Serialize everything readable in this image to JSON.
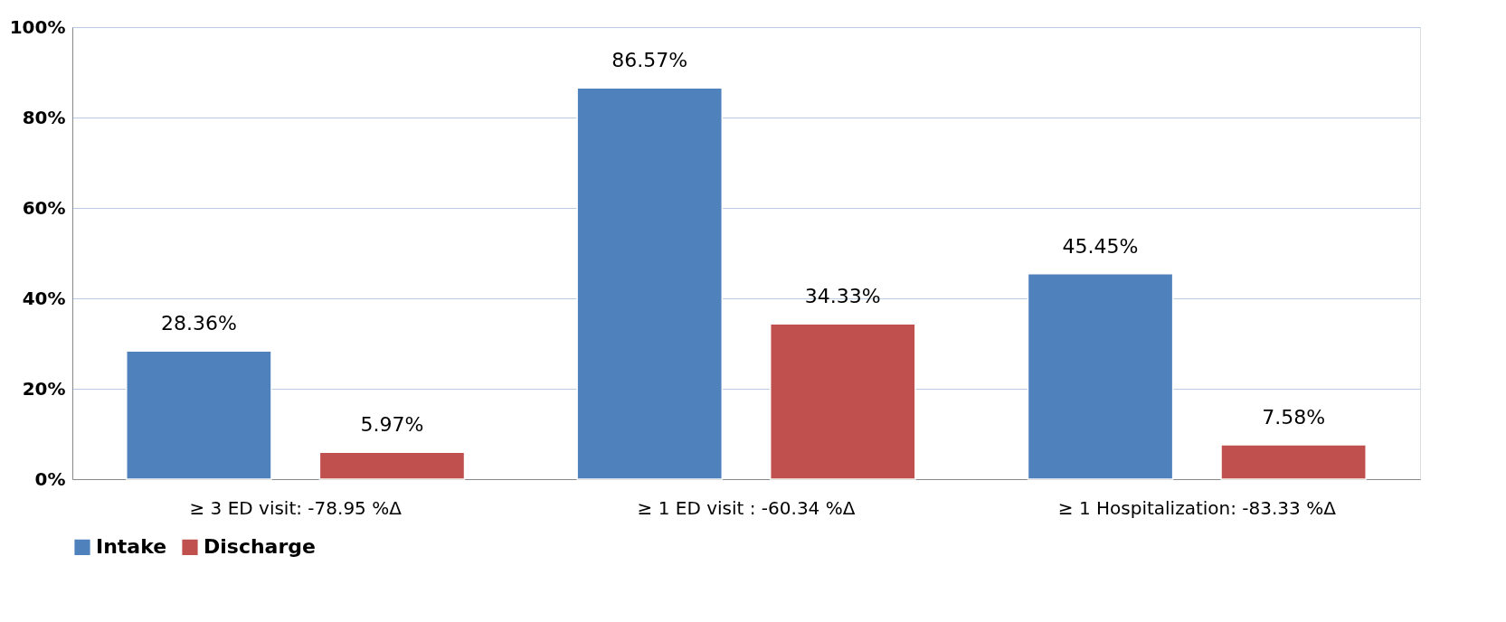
{
  "chart_data": {
    "type": "bar",
    "categories": [
      "≥ 3 ED visit:  -78.95 %Δ",
      "≥ 1 ED visit :  -60.34 %Δ",
      "≥ 1 Hospitalization:  -83.33 %Δ"
    ],
    "series": [
      {
        "name": "Intake",
        "color": "#4f81bd",
        "values": [
          28.36,
          86.57,
          45.45
        ],
        "value_labels": [
          "28.36%",
          "86.57%",
          "45.45%"
        ]
      },
      {
        "name": "Discharge",
        "color": "#c0504d",
        "values": [
          5.97,
          34.33,
          7.58
        ],
        "value_labels": [
          "5.97%",
          "34.33%",
          "7.58%"
        ]
      }
    ],
    "ylim": [
      0,
      100
    ],
    "yticks": [
      {
        "value": 0,
        "label": "0%"
      },
      {
        "value": 20,
        "label": "20%"
      },
      {
        "value": 40,
        "label": "40%"
      },
      {
        "value": 60,
        "label": "60%"
      },
      {
        "value": 80,
        "label": "80%"
      },
      {
        "value": 100,
        "label": "100%"
      }
    ],
    "grid": "y",
    "legend": "bottom"
  }
}
